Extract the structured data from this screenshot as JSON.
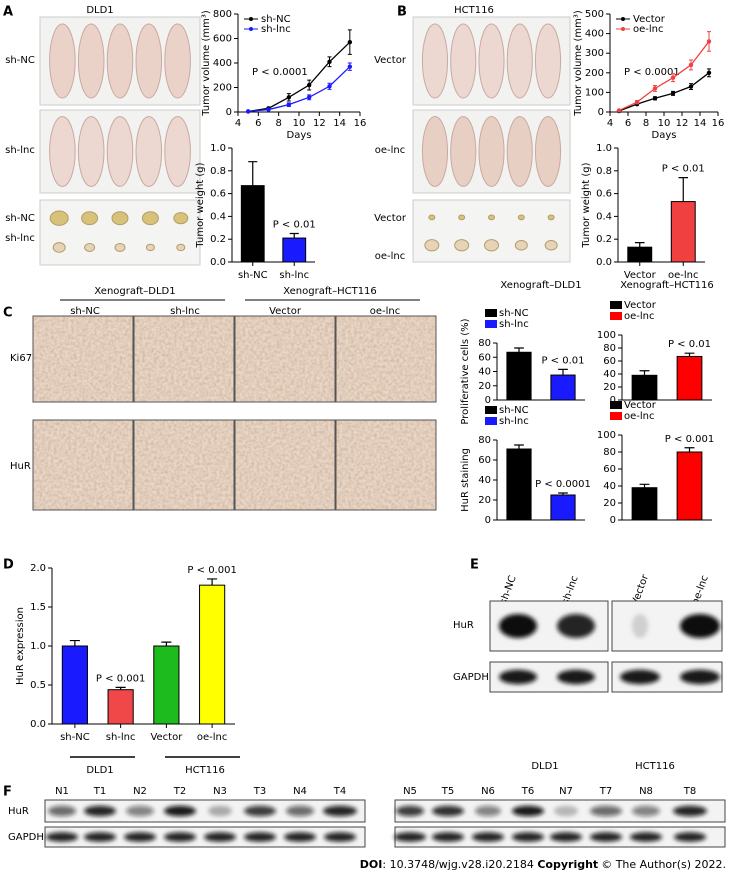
{
  "labels": {
    "panel_letters": [
      "A",
      "B",
      "C",
      "D",
      "E",
      "F"
    ],
    "a": {
      "cell_line": "DLD1",
      "photo_rows": [
        "sh-NC",
        "sh-lnc"
      ],
      "tumor_rows": [
        "sh-NC",
        "sh-lnc"
      ]
    },
    "b": {
      "cell_line": "HCT116",
      "photo_rows": [
        "Vector",
        "oe-lnc"
      ],
      "tumor_rows": [
        "Vector",
        "oe-lnc"
      ]
    },
    "c": {
      "groups": [
        "Xenograft–DLD1",
        "Xenograft–HCT116"
      ],
      "columns": [
        "sh-NC",
        "sh-lnc",
        "Vector",
        "oe-lnc"
      ],
      "rows": [
        "Ki67",
        "HuR"
      ]
    },
    "d": {
      "groups": [
        "DLD1",
        "HCT116"
      ]
    },
    "e": {
      "lanes": [
        "sh-NC",
        "sh-lnc",
        "Vector",
        "oe-lnc"
      ],
      "rows": [
        "HuR",
        "GAPDH"
      ],
      "groups": [
        "DLD1",
        "HCT116"
      ]
    },
    "f": {
      "lanes_left": [
        "N1",
        "T1",
        "N2",
        "T2",
        "N3",
        "T3",
        "N4",
        "T4"
      ],
      "lanes_right": [
        "N5",
        "T5",
        "N6",
        "T6",
        "N7",
        "T7",
        "N8",
        "T8"
      ],
      "rows": [
        "HuR",
        "GAPDH"
      ]
    },
    "footer": {
      "doi_label": "DOI",
      "doi": ": 10.3748/wjg.v28.i20.2184",
      "copyright_label": "Copyright",
      "copyright": "© The Author(s) 2022."
    }
  },
  "chart_data": [
    {
      "type": "line",
      "xlabel": "Days",
      "ylabel": "Tumor volume (mm³)",
      "annotation": "P < 0.0001",
      "x": [
        5,
        7,
        9,
        11,
        13,
        15
      ],
      "xlim": [
        4,
        16
      ],
      "xticks": [
        4,
        6,
        8,
        10,
        12,
        14,
        16
      ],
      "ylim": [
        0,
        800
      ],
      "yticks": [
        0,
        200,
        400,
        600,
        800
      ],
      "series": [
        {
          "name": "sh-NC",
          "color": "#000000",
          "values": [
            5,
            30,
            120,
            220,
            410,
            570
          ],
          "errors": [
            2,
            8,
            30,
            40,
            40,
            100
          ]
        },
        {
          "name": "sh-lnc",
          "color": "#1a1aff",
          "values": [
            5,
            20,
            60,
            120,
            210,
            370
          ],
          "errors": [
            2,
            5,
            15,
            20,
            25,
            30
          ]
        }
      ]
    },
    {
      "type": "bar",
      "ylabel": "Tumor weight (g)",
      "category_labels": "axis",
      "categories": [
        "sh-NC",
        "sh-lnc"
      ],
      "values": [
        0.67,
        0.21
      ],
      "errors": [
        0.21,
        0.04
      ],
      "colors": [
        "#000000",
        "#1a1aff"
      ],
      "value_annotations": [
        null,
        "P < 0.01"
      ],
      "ylim": [
        0,
        1
      ],
      "yticks": [
        {
          "value": 0,
          "label": "0.0"
        },
        0.2,
        0.4,
        0.6,
        0.8,
        {
          "value": 1,
          "label": "1.0"
        }
      ]
    },
    {
      "type": "line",
      "xlabel": "Days",
      "ylabel": "Tumor volume (mm³)",
      "annotation": "P < 0.0001",
      "x": [
        5,
        7,
        9,
        11,
        13,
        15
      ],
      "xlim": [
        4,
        16
      ],
      "xticks": [
        4,
        6,
        8,
        10,
        12,
        14,
        16
      ],
      "ylim": [
        0,
        500
      ],
      "yticks": [
        0,
        100,
        200,
        300,
        400,
        500
      ],
      "series": [
        {
          "name": "Vector",
          "color": "#000000",
          "values": [
            5,
            40,
            70,
            95,
            130,
            200
          ],
          "errors": [
            2,
            5,
            8,
            10,
            15,
            20
          ]
        },
        {
          "name": "oe-lnc",
          "color": "#f04040",
          "values": [
            8,
            50,
            120,
            175,
            240,
            360
          ],
          "errors": [
            3,
            8,
            15,
            20,
            25,
            50
          ]
        }
      ]
    },
    {
      "type": "bar",
      "ylabel": "Tumor weight (g)",
      "category_labels": "axis",
      "categories": [
        "Vector",
        "oe-lnc"
      ],
      "values": [
        0.13,
        0.53
      ],
      "errors": [
        0.04,
        0.21
      ],
      "colors": [
        "#000000",
        "#f04040"
      ],
      "value_annotations": [
        null,
        "P < 0.01"
      ],
      "ylim": [
        0,
        1
      ],
      "yticks": [
        {
          "value": 0,
          "label": "0.0"
        },
        0.2,
        0.4,
        0.6,
        0.8,
        {
          "value": 1,
          "label": "1.0"
        }
      ]
    },
    {
      "type": "bar",
      "title": "Xenograft–DLD1",
      "ylabel": "Proliferative cells (%)",
      "category_labels": "legend",
      "categories": [
        "sh-NC",
        "sh-lnc"
      ],
      "values": [
        67,
        35
      ],
      "errors": [
        6,
        8
      ],
      "colors": [
        "#000000",
        "#1a1aff"
      ],
      "value_annotations": [
        null,
        "P < 0.01"
      ],
      "ylim": [
        0,
        80
      ],
      "yticks": [
        0,
        20,
        40,
        60,
        80
      ]
    },
    {
      "type": "bar",
      "title": "Xenograft–HCT116",
      "category_labels": "legend",
      "categories": [
        "Vector",
        "oe-lnc"
      ],
      "values": [
        38,
        67
      ],
      "errors": [
        7,
        5
      ],
      "colors": [
        "#000000",
        "#ff0000"
      ],
      "value_annotations": [
        null,
        "P < 0.01"
      ],
      "ylim": [
        0,
        100
      ],
      "yticks": [
        0,
        20,
        40,
        60,
        80,
        100
      ]
    },
    {
      "type": "bar",
      "ylabel": "HuR staining",
      "category_labels": "legend",
      "categories": [
        "sh-NC",
        "sh-lnc"
      ],
      "values": [
        71,
        25
      ],
      "errors": [
        4,
        2
      ],
      "colors": [
        "#000000",
        "#1a1aff"
      ],
      "value_annotations": [
        null,
        "P < 0.0001"
      ],
      "ylim": [
        0,
        80
      ],
      "yticks": [
        0,
        20,
        40,
        60,
        80
      ]
    },
    {
      "type": "bar",
      "category_labels": "legend",
      "categories": [
        "Vector",
        "oe-lnc"
      ],
      "values": [
        38,
        80
      ],
      "errors": [
        4,
        5
      ],
      "colors": [
        "#000000",
        "#ff0000"
      ],
      "value_annotations": [
        null,
        "P < 0.001"
      ],
      "ylim": [
        0,
        100
      ],
      "yticks": [
        0,
        20,
        40,
        60,
        80,
        100
      ]
    },
    {
      "type": "bar",
      "ylabel": "HuR expression",
      "category_labels": "axis",
      "categories": [
        "sh-NC",
        "sh-lnc",
        "Vector",
        "oe-lnc"
      ],
      "values": [
        1.0,
        0.44,
        1.0,
        1.78
      ],
      "errors": [
        0.07,
        0.03,
        0.05,
        0.08
      ],
      "colors": [
        "#1a1aff",
        "#f04848",
        "#1dbb1d",
        "#ffff00"
      ],
      "value_annotations": [
        null,
        "P < 0.001",
        null,
        "P < 0.001"
      ],
      "ylim": [
        0,
        2
      ],
      "yticks": [
        {
          "value": 0,
          "label": "0.0"
        },
        0.5,
        {
          "value": 1,
          "label": "1.0"
        },
        1.5,
        {
          "value": 2,
          "label": "2.0"
        }
      ]
    }
  ]
}
